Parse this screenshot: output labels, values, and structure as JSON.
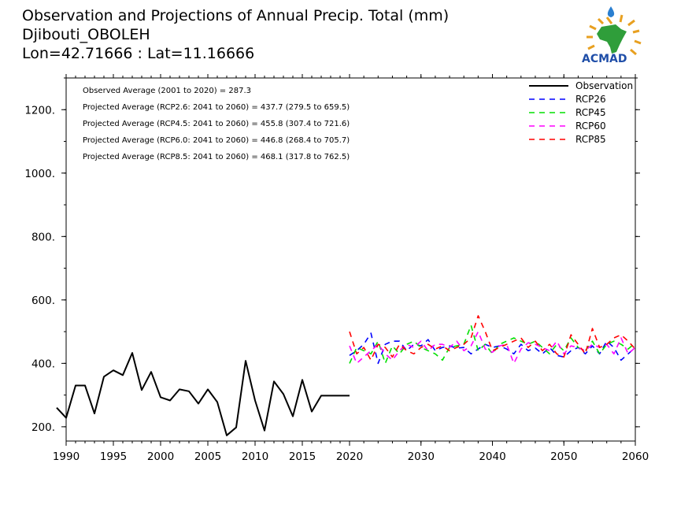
{
  "title_lines": [
    "Observation and Projections of Annual Precip. Total (mm)",
    "Djibouti_OBOLEH",
    "Lon=42.71666 : Lat=11.16666"
  ],
  "logo": {
    "text": "ACMAD"
  },
  "colors": {
    "Observation": "#000000",
    "RCP26": "#0000ff",
    "RCP45": "#00e000",
    "RCP60": "#ff00ff",
    "RCP85": "#ff0000"
  },
  "stats": [
    "Observed Average (2001 to 2020) = 287.3",
    "Projected Average (RCP2.6: 2041 to 2060) = 437.7 (279.5 to 659.5)",
    "Projected Average (RCP4.5: 2041 to 2060) = 455.8 (307.4 to 721.6)",
    "Projected Average (RCP6.0: 2041 to 2060) = 446.8 (268.4 to 705.7)",
    "Projected Average (RCP8.5: 2041 to 2060) = 468.1 (317.8 to 762.5)"
  ],
  "chart_data": {
    "type": "line",
    "title": "Observation and Projections of Annual Precip. Total (mm)",
    "x_tick_labels": [
      "1990",
      "1995",
      "2000",
      "2005",
      "2010",
      "2015",
      "2020",
      "2030",
      "2040",
      "2050",
      "2060"
    ],
    "y_tick_labels": [
      "200.",
      "400.",
      "600.",
      "800.",
      "1000.",
      "1200."
    ],
    "y_ticks": [
      200,
      400,
      600,
      800,
      1000,
      1200
    ],
    "ylim": [
      155,
      1300
    ],
    "x_axis_break_years": [
      1990,
      2020,
      2060
    ],
    "legend_position": "top-right",
    "grid": false,
    "series": [
      {
        "name": "Observation",
        "style": "solid",
        "x": [
          1989,
          1990,
          1991,
          1992,
          1993,
          1994,
          1995,
          1996,
          1997,
          1998,
          1999,
          2000,
          2001,
          2002,
          2003,
          2004,
          2005,
          2006,
          2007,
          2008,
          2009,
          2010,
          2011,
          2012,
          2013,
          2014,
          2015,
          2016,
          2017,
          2018,
          2019,
          2020
        ],
        "values": [
          260,
          228,
          330,
          330,
          242,
          358,
          378,
          363,
          433,
          316,
          373,
          293,
          283,
          318,
          312,
          273,
          318,
          278,
          173,
          198,
          408,
          283,
          188,
          343,
          303,
          233,
          348,
          248,
          298,
          298,
          298,
          298
        ]
      },
      {
        "name": "RCP26",
        "style": "dashed",
        "x": [
          2020,
          2021,
          2022,
          2023,
          2024,
          2025,
          2026,
          2027,
          2028,
          2029,
          2030,
          2031,
          2032,
          2033,
          2034,
          2035,
          2036,
          2037,
          2038,
          2039,
          2040,
          2041,
          2042,
          2043,
          2044,
          2045,
          2046,
          2047,
          2048,
          2049,
          2050,
          2051,
          2052,
          2053,
          2054,
          2055,
          2056,
          2057,
          2058,
          2059,
          2060
        ],
        "values": [
          425,
          440,
          460,
          495,
          400,
          460,
          470,
          470,
          440,
          460,
          455,
          475,
          440,
          450,
          455,
          448,
          450,
          430,
          445,
          460,
          450,
          455,
          445,
          430,
          460,
          440,
          448,
          430,
          450,
          425,
          420,
          440,
          450,
          430,
          455,
          430,
          470,
          450,
          410,
          430,
          450
        ]
      },
      {
        "name": "RCP45",
        "style": "dashed",
        "x": [
          2020,
          2021,
          2022,
          2023,
          2024,
          2025,
          2026,
          2027,
          2028,
          2029,
          2030,
          2031,
          2032,
          2033,
          2034,
          2035,
          2036,
          2037,
          2038,
          2039,
          2040,
          2041,
          2042,
          2043,
          2044,
          2045,
          2046,
          2047,
          2048,
          2049,
          2050,
          2051,
          2052,
          2053,
          2054,
          2055,
          2056,
          2057,
          2058,
          2059,
          2060
        ],
        "values": [
          400,
          450,
          440,
          430,
          470,
          400,
          455,
          430,
          460,
          470,
          450,
          440,
          430,
          410,
          450,
          455,
          460,
          520,
          440,
          460,
          430,
          460,
          470,
          480,
          470,
          460,
          470,
          450,
          430,
          460,
          440,
          480,
          450,
          440,
          470,
          430,
          460,
          470,
          460,
          445,
          465
        ]
      },
      {
        "name": "RCP60",
        "style": "dashed",
        "x": [
          2020,
          2021,
          2022,
          2023,
          2024,
          2025,
          2026,
          2027,
          2028,
          2029,
          2030,
          2031,
          2032,
          2033,
          2034,
          2035,
          2036,
          2037,
          2038,
          2039,
          2040,
          2041,
          2042,
          2043,
          2044,
          2045,
          2046,
          2047,
          2048,
          2049,
          2050,
          2051,
          2052,
          2053,
          2054,
          2055,
          2056,
          2057,
          2058,
          2059,
          2060
        ],
        "values": [
          455,
          400,
          420,
          440,
          460,
          430,
          410,
          440,
          460,
          450,
          470,
          440,
          460,
          460,
          450,
          470,
          440,
          455,
          500,
          445,
          435,
          455,
          460,
          400,
          445,
          465,
          460,
          450,
          440,
          470,
          430,
          455,
          450,
          440,
          460,
          450,
          460,
          430,
          480,
          430,
          450
        ]
      },
      {
        "name": "RCP85",
        "style": "dashed",
        "x": [
          2020,
          2021,
          2022,
          2023,
          2024,
          2025,
          2026,
          2027,
          2028,
          2029,
          2030,
          2031,
          2032,
          2033,
          2034,
          2035,
          2036,
          2037,
          2038,
          2039,
          2040,
          2041,
          2042,
          2043,
          2044,
          2045,
          2046,
          2047,
          2048,
          2049,
          2050,
          2051,
          2052,
          2053,
          2054,
          2055,
          2056,
          2057,
          2058,
          2059,
          2060
        ],
        "values": [
          500,
          430,
          450,
          410,
          460,
          450,
          420,
          460,
          440,
          430,
          450,
          460,
          445,
          455,
          440,
          450,
          460,
          480,
          550,
          500,
          440,
          450,
          460,
          470,
          480,
          450,
          470,
          440,
          460,
          430,
          420,
          490,
          460,
          430,
          510,
          450,
          460,
          480,
          490,
          470,
          445
        ]
      }
    ]
  }
}
